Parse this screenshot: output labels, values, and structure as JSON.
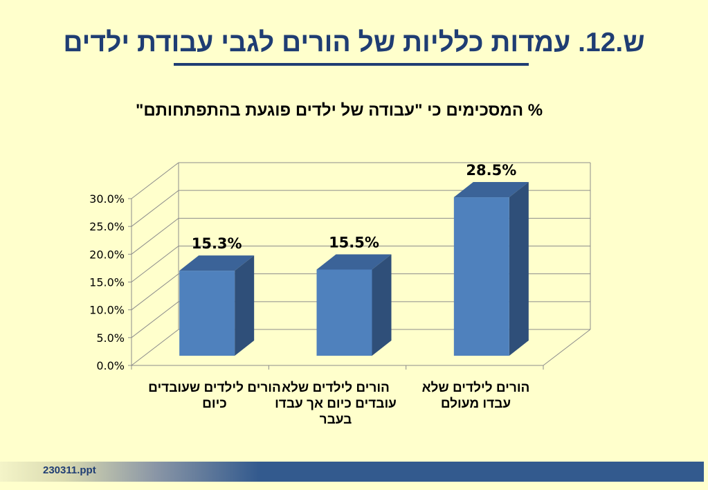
{
  "slide": {
    "title": "ש.12. עמדות כלליות של הורים לגבי עבודת ילדים",
    "footer": "230311.ppt"
  },
  "colors": {
    "background": "#ffffcc",
    "title": "#1f3d73",
    "bar_front": "#4f81bd",
    "bar_top": "#3b6398",
    "bar_side": "#2f4f79",
    "footer_bar": "#335a8e"
  },
  "chart_data": {
    "type": "bar",
    "title": "% המסכימים כי \"עבודה של ילדים פוגעת בהתפתחותם\"",
    "categories": [
      "הורים לילדים שעובדים כיום",
      "הורים לילדים שלא עובדים כיום אך עבדו בעבר",
      "הורים לילדים שלא עבדו מעולם"
    ],
    "values": [
      15.3,
      15.5,
      28.5
    ],
    "value_labels": [
      "15.3%",
      "15.5%",
      "28.5%"
    ],
    "yticks": [
      "0.0%",
      "5.0%",
      "10.0%",
      "15.0%",
      "20.0%",
      "25.0%",
      "30.0%"
    ],
    "ylim": [
      0,
      30
    ],
    "grid": true,
    "style": "3d-column",
    "legend": "none"
  }
}
